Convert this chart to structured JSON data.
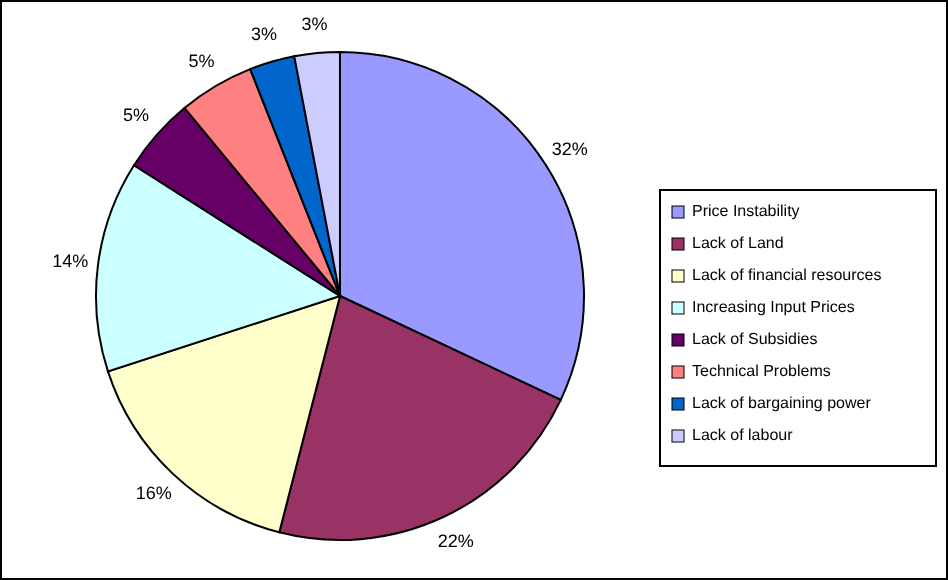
{
  "chart_data": {
    "type": "pie",
    "categories": [
      "Price Instability",
      "Lack of Land",
      "Lack of financial resources",
      "Increasing Input Prices",
      "Lack of Subsidies",
      "Technical Problems",
      "Lack of bargaining power",
      "Lack of labour"
    ],
    "values": [
      32,
      22,
      16,
      14,
      5,
      5,
      3,
      3
    ],
    "colors": [
      "#9999ff",
      "#993366",
      "#ffffcc",
      "#ccffff",
      "#660066",
      "#ff8080",
      "#0066cc",
      "#ccccff"
    ],
    "value_labels": [
      "32%",
      "22%",
      "16%",
      "14%",
      "5%",
      "5%",
      "3%",
      "3%"
    ],
    "legend": "right"
  }
}
